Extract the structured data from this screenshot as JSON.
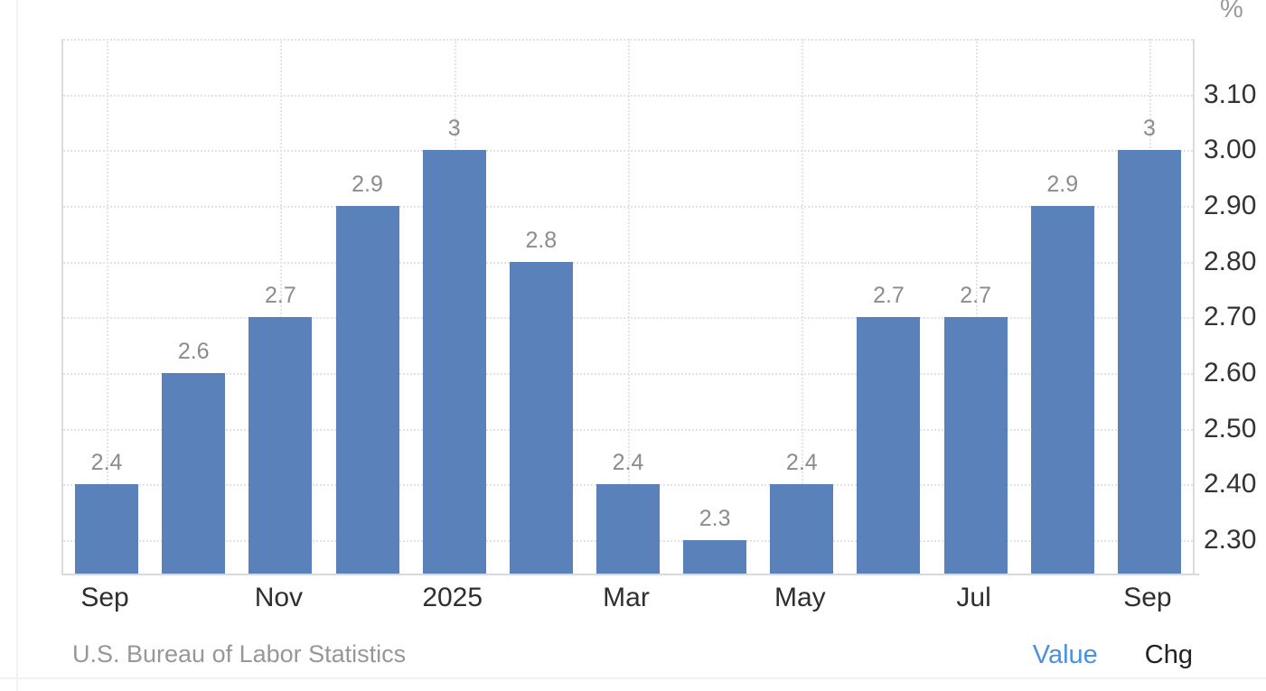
{
  "unit": "%",
  "footer": {
    "source": "U.S. Bureau of Labor Statistics",
    "series_toggles": [
      {
        "label": "Value",
        "active": true,
        "color": "#4a90e2"
      },
      {
        "label": "Chg",
        "active": false,
        "color": "#222222"
      }
    ]
  },
  "colors": {
    "bar": "#5b81ba",
    "grid": "#e3e3e3",
    "axis_line": "#dcdcdc",
    "bar_label": "#8c8c8c",
    "axis_text": "#333333",
    "unit_text": "#9a9a9a",
    "source_text": "#979797",
    "value_toggle": "#4a90e2",
    "chg_toggle": "#222222"
  },
  "chart_data": {
    "type": "bar",
    "title": "",
    "unit": "%",
    "source": "U.S. Bureau of Labor Statistics",
    "values": [
      2.4,
      2.6,
      2.7,
      2.9,
      3,
      2.8,
      2.4,
      2.3,
      2.4,
      2.7,
      2.7,
      2.9,
      3
    ],
    "bar_labels": [
      "2.4",
      "2.6",
      "2.7",
      "2.9",
      "3",
      "2.8",
      "2.4",
      "2.3",
      "2.4",
      "2.7",
      "2.7",
      "2.9",
      "3"
    ],
    "x_ticks": [
      {
        "index": 0,
        "label": "Sep"
      },
      {
        "index": 2,
        "label": "Nov"
      },
      {
        "index": 4,
        "label": "2025"
      },
      {
        "index": 6,
        "label": "Mar"
      },
      {
        "index": 8,
        "label": "May"
      },
      {
        "index": 10,
        "label": "Jul"
      },
      {
        "index": 12,
        "label": "Sep"
      }
    ],
    "y_axis": {
      "ticks": [
        {
          "value": 3.2,
          "label": ""
        },
        {
          "value": 3.1,
          "label": "3.10"
        },
        {
          "value": 3.0,
          "label": "3.00"
        },
        {
          "value": 2.9,
          "label": "2.90"
        },
        {
          "value": 2.8,
          "label": "2.80"
        },
        {
          "value": 2.7,
          "label": "2.70"
        },
        {
          "value": 2.6,
          "label": "2.60"
        },
        {
          "value": 2.5,
          "label": "2.50"
        },
        {
          "value": 2.4,
          "label": "2.40"
        },
        {
          "value": 2.3,
          "label": "2.30"
        }
      ]
    },
    "ylim": [
      2.24,
      3.2
    ],
    "grid": "dotted",
    "legend_position": "none",
    "bar_color": "#5b81ba"
  }
}
